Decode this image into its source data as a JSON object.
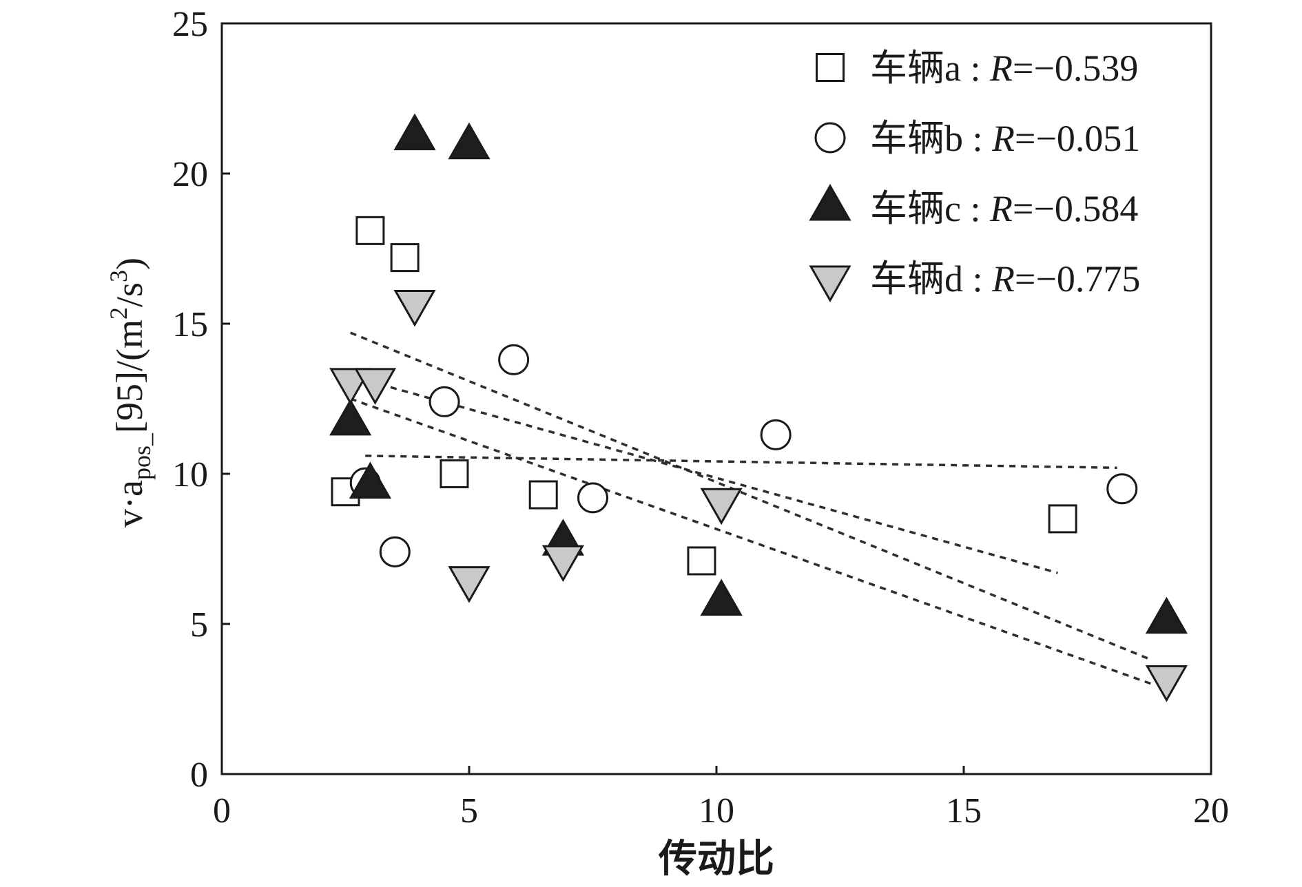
{
  "chart_data": {
    "type": "scatter",
    "xlabel": "传动比",
    "ylabel": [
      {
        "text": "v·a",
        "level": 0
      },
      {
        "text": "pos_",
        "level": -1
      },
      {
        "text": "[95]/(m",
        "level": 0
      },
      {
        "text": "2",
        "level": 1
      },
      {
        "text": "/s",
        "level": 0
      },
      {
        "text": "3",
        "level": 1
      },
      {
        "text": ")",
        "level": 0
      }
    ],
    "xlim": [
      0,
      20
    ],
    "ylim": [
      0,
      25
    ],
    "xticks": [
      0,
      5,
      10,
      15,
      20
    ],
    "yticks": [
      0,
      5,
      10,
      15,
      20,
      25
    ],
    "grid": false,
    "legend": {
      "position": "top-right"
    },
    "axis_color": "#1a1a1a",
    "fit_line_color": "#2e2e2e",
    "series": [
      {
        "name": "车辆a",
        "sep": " : ",
        "r_symbol": "R",
        "r_value": "=−0.539",
        "marker": "square",
        "fill": "#ffffff",
        "stroke": "#1a1a1a",
        "x": [
          2.5,
          3.0,
          3.7,
          4.7,
          6.5,
          9.7,
          17.0
        ],
        "y": [
          9.4,
          18.1,
          17.2,
          10.0,
          9.3,
          7.1,
          8.5
        ],
        "fit": {
          "x": [
            2.5,
            16.9
          ],
          "y": [
            13.3,
            6.7
          ]
        }
      },
      {
        "name": "车辆b",
        "sep": " : ",
        "r_symbol": "R",
        "r_value": "=−0.051",
        "marker": "circle",
        "fill": "#ffffff",
        "stroke": "#1a1a1a",
        "x": [
          2.9,
          3.5,
          4.5,
          5.9,
          7.5,
          11.2,
          18.2
        ],
        "y": [
          9.7,
          7.4,
          12.4,
          13.8,
          9.2,
          11.3,
          9.5
        ],
        "fit": {
          "x": [
            2.9,
            18.1
          ],
          "y": [
            10.6,
            10.2
          ]
        }
      },
      {
        "name": "车辆c",
        "sep": " : ",
        "r_symbol": "R",
        "r_value": "=−0.584",
        "marker": "triangle-up",
        "fill": "#1e1e1e",
        "stroke": "#1a1a1a",
        "x": [
          2.6,
          3.0,
          3.9,
          5.0,
          6.9,
          10.1,
          19.1
        ],
        "y": [
          11.7,
          9.6,
          21.2,
          20.9,
          7.7,
          5.7,
          5.1
        ],
        "fit": {
          "x": [
            2.6,
            18.8
          ],
          "y": [
            14.7,
            3.8
          ]
        }
      },
      {
        "name": "车辆d",
        "sep": " : ",
        "r_symbol": "R",
        "r_value": "=−0.775",
        "marker": "triangle-down",
        "fill": "#c9c9c9",
        "stroke": "#1a1a1a",
        "x": [
          2.6,
          3.1,
          3.9,
          5.0,
          6.9,
          10.1,
          19.1
        ],
        "y": [
          13.1,
          13.1,
          15.7,
          6.5,
          7.2,
          9.1,
          3.2
        ],
        "fit": {
          "x": [
            2.6,
            18.8
          ],
          "y": [
            12.5,
            3.0
          ]
        }
      }
    ]
  }
}
